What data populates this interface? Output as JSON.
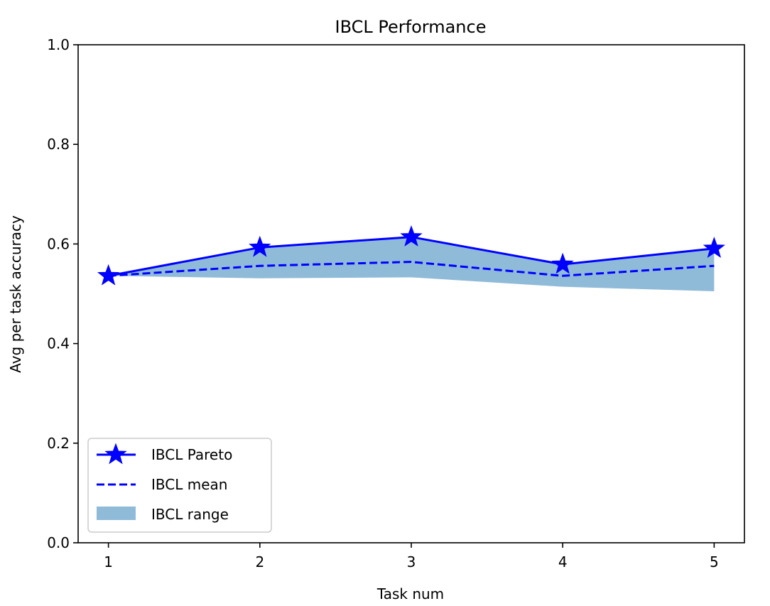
{
  "chart_data": {
    "type": "line",
    "title": "IBCL Performance",
    "xlabel": "Task num",
    "ylabel": "Avg per task accuracy",
    "x": [
      1,
      2,
      3,
      4,
      5
    ],
    "xlim": [
      0.8,
      5.2
    ],
    "ylim": [
      0.0,
      1.0
    ],
    "xticks": [
      "1",
      "2",
      "3",
      "4",
      "5"
    ],
    "yticks": [
      "0.0",
      "0.2",
      "0.4",
      "0.6",
      "0.8",
      "1.0"
    ],
    "grid": false,
    "legend_position": "lower-left",
    "series": [
      {
        "name": "IBCL Pareto",
        "kind": "line",
        "style": "solid",
        "marker": "star",
        "color": "#0000ff",
        "values": [
          0.536,
          0.593,
          0.614,
          0.559,
          0.591
        ]
      },
      {
        "name": "IBCL mean",
        "kind": "line",
        "style": "dashed",
        "color": "#0000ff",
        "values": [
          0.536,
          0.556,
          0.564,
          0.536,
          0.556
        ]
      },
      {
        "name": "IBCL range",
        "kind": "band",
        "color": "#1f77b4",
        "opacity": 0.5,
        "upper": [
          0.536,
          0.593,
          0.614,
          0.559,
          0.591
        ],
        "lower": [
          0.536,
          0.531,
          0.533,
          0.514,
          0.505
        ]
      }
    ]
  }
}
